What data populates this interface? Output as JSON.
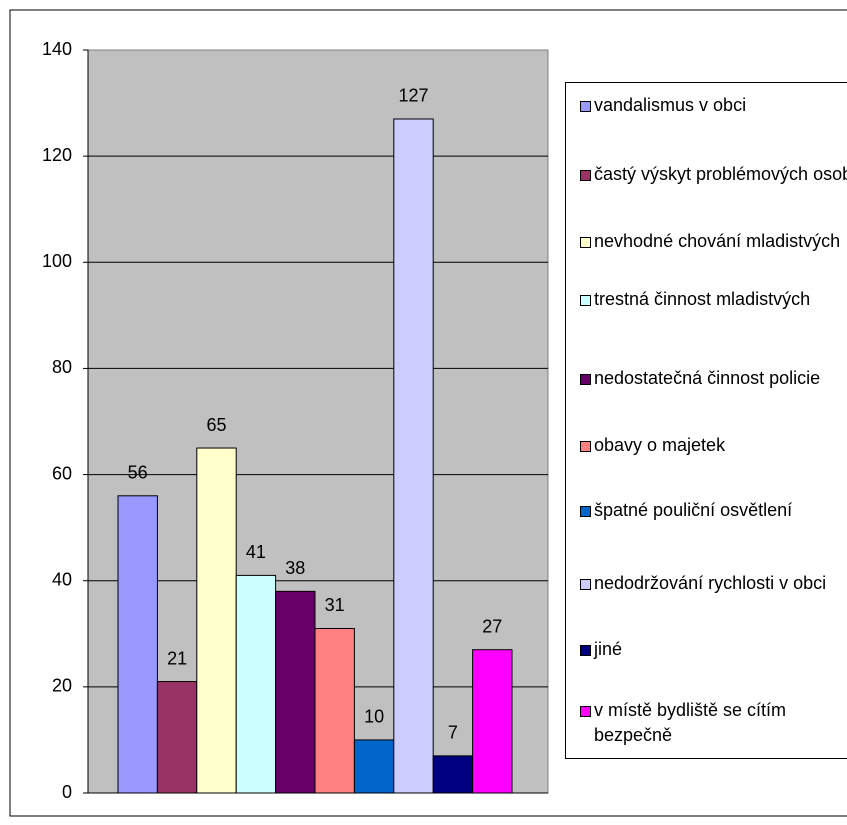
{
  "chart_data": {
    "type": "bar",
    "series": [
      {
        "name": "vandalismus v obci",
        "color": "#9999ff",
        "values": [
          56
        ]
      },
      {
        "name": "častý výskyt problémových osob",
        "color": "#993366",
        "values": [
          21
        ]
      },
      {
        "name": "nevhodné chování mladistvých",
        "color": "#ffffcc",
        "values": [
          65
        ]
      },
      {
        "name": "trestná činnost mladistvých",
        "color": "#ccffff",
        "values": [
          41
        ]
      },
      {
        "name": "nedostatečná činnost policie",
        "color": "#660066",
        "values": [
          38
        ]
      },
      {
        "name": "obavy o majetek",
        "color": "#ff8080",
        "values": [
          31
        ]
      },
      {
        "name": "špatné pouliční osvětlení",
        "color": "#0066cc",
        "values": [
          10
        ]
      },
      {
        "name": "nedodržování rychlosti v obci",
        "color": "#ccccff",
        "values": [
          127
        ]
      },
      {
        "name": "jiné",
        "color": "#000080",
        "values": [
          7
        ]
      },
      {
        "name": "v místě bydliště se cítím bezpečně",
        "color": "#ff00ff",
        "values": [
          27
        ]
      }
    ],
    "ylim": [
      0,
      140
    ],
    "yticks": [
      0,
      20,
      40,
      60,
      80,
      100,
      120,
      140
    ],
    "grid": true,
    "legend": "right"
  }
}
